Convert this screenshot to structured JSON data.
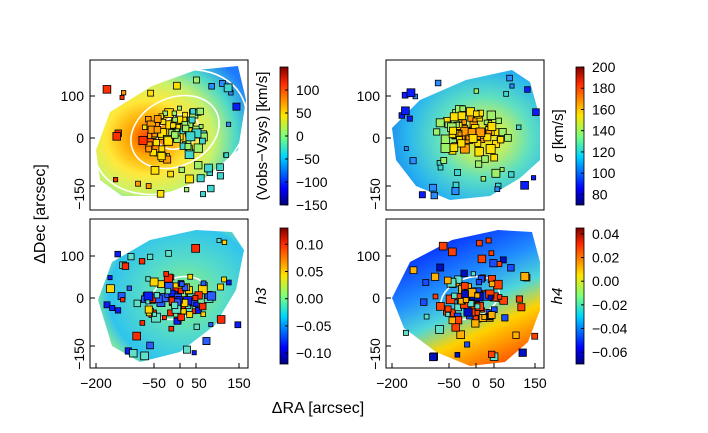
{
  "figure": {
    "xlabel": "ΔRA [arcsec]",
    "ylabel": "ΔDec [arcsec]"
  },
  "chart_data": [
    {
      "type": "heatmap",
      "title": "",
      "quantity": "V_obs - V_sys",
      "colorbar_label": "(Vobs−Vsys) [km/s]",
      "colorbar_ticks": [
        "100",
        "50",
        "0",
        "−50",
        "−100",
        "−150"
      ],
      "colorbar_tick_values": [
        100,
        50,
        0,
        -50,
        -100,
        -150
      ],
      "colorbar_range": [
        -150,
        150
      ],
      "xlim": [
        -220,
        170
      ],
      "ylim": [
        -200,
        170
      ],
      "xticks": [],
      "yticks": [
        "100",
        "0",
        "−150"
      ],
      "map_description_values": {
        "gradient": "positive (red) to the east at negative ΔRA, negative (blue) to the west at positive ΔRA"
      },
      "overlays": [
        "three concentric white ellipses"
      ]
    },
    {
      "type": "heatmap",
      "title": "",
      "quantity": "sigma",
      "colorbar_label": "σ [km/s]",
      "colorbar_ticks": [
        "200",
        "180",
        "160",
        "140",
        "120",
        "100",
        "80"
      ],
      "colorbar_tick_values": [
        200,
        180,
        160,
        140,
        120,
        100,
        80
      ],
      "colorbar_range": [
        70,
        200
      ],
      "xlim": [
        -220,
        170
      ],
      "ylim": [
        -200,
        170
      ],
      "xticks": [],
      "yticks": [
        "100",
        "0",
        "−150"
      ]
    },
    {
      "type": "heatmap",
      "title": "",
      "quantity": "h3",
      "colorbar_label": "h3",
      "colorbar_ticks": [
        "0.10",
        "0.05",
        "0.00",
        "−0.05",
        "−0.10"
      ],
      "colorbar_tick_values": [
        0.1,
        0.05,
        0.0,
        -0.05,
        -0.1
      ],
      "colorbar_range": [
        -0.12,
        0.13
      ],
      "xlim": [
        -220,
        170
      ],
      "ylim": [
        -200,
        170
      ],
      "xticks": [
        "−200",
        "−50",
        "0",
        "50",
        "150"
      ],
      "yticks": [
        "100",
        "0",
        "−150"
      ],
      "overlays": [
        "white ellipse"
      ]
    },
    {
      "type": "heatmap",
      "title": "",
      "quantity": "h4",
      "colorbar_label": "h4",
      "colorbar_ticks": [
        "0.04",
        "0.02",
        "0.00",
        "−0.02",
        "−0.04",
        "−0.06"
      ],
      "colorbar_tick_values": [
        0.04,
        0.02,
        0.0,
        -0.02,
        -0.04,
        -0.06
      ],
      "colorbar_range": [
        -0.07,
        0.045
      ],
      "xlim": [
        -220,
        170
      ],
      "ylim": [
        -200,
        170
      ],
      "xticks": [
        "−200",
        "−50",
        "0",
        "50",
        "150"
      ],
      "yticks": [
        "100",
        "0",
        "−150"
      ],
      "overlays": [
        "white ellipse"
      ]
    }
  ]
}
